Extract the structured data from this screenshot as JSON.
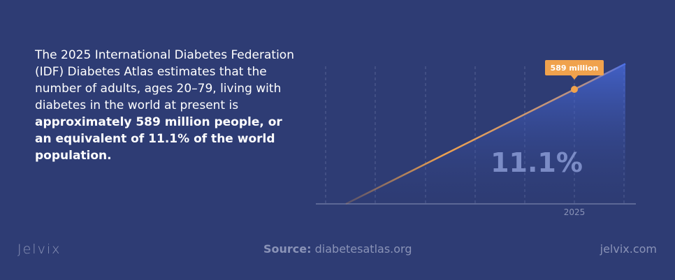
{
  "intro": {
    "text_plain": "The 2025 International Diabetes Federation (IDF) Diabetes Atlas estimates that the number of adults, ages 20–79, living with diabetes in the world at present is ",
    "text_bold": "approximately 589 million people, or an equivalent of 11.1% of the world population."
  },
  "chart_data": {
    "type": "area",
    "x_tick_labels": [
      "2025"
    ],
    "series": [
      {
        "values": [
          0,
          589
        ]
      }
    ],
    "highlight": {
      "x": "2025",
      "label": "589 million"
    },
    "center_label": "11.1%",
    "grid": "vertical-dashed",
    "colors": {
      "line_start": "#f0a24d",
      "line_end": "#4a6fe8",
      "marker": "#f0a24d",
      "callout_bg": "#f0a24d"
    }
  },
  "footer": {
    "logo": "Jelvix",
    "source_label": "Source:",
    "source_value": "diabetesatlas.org",
    "site": "jelvix.com"
  }
}
